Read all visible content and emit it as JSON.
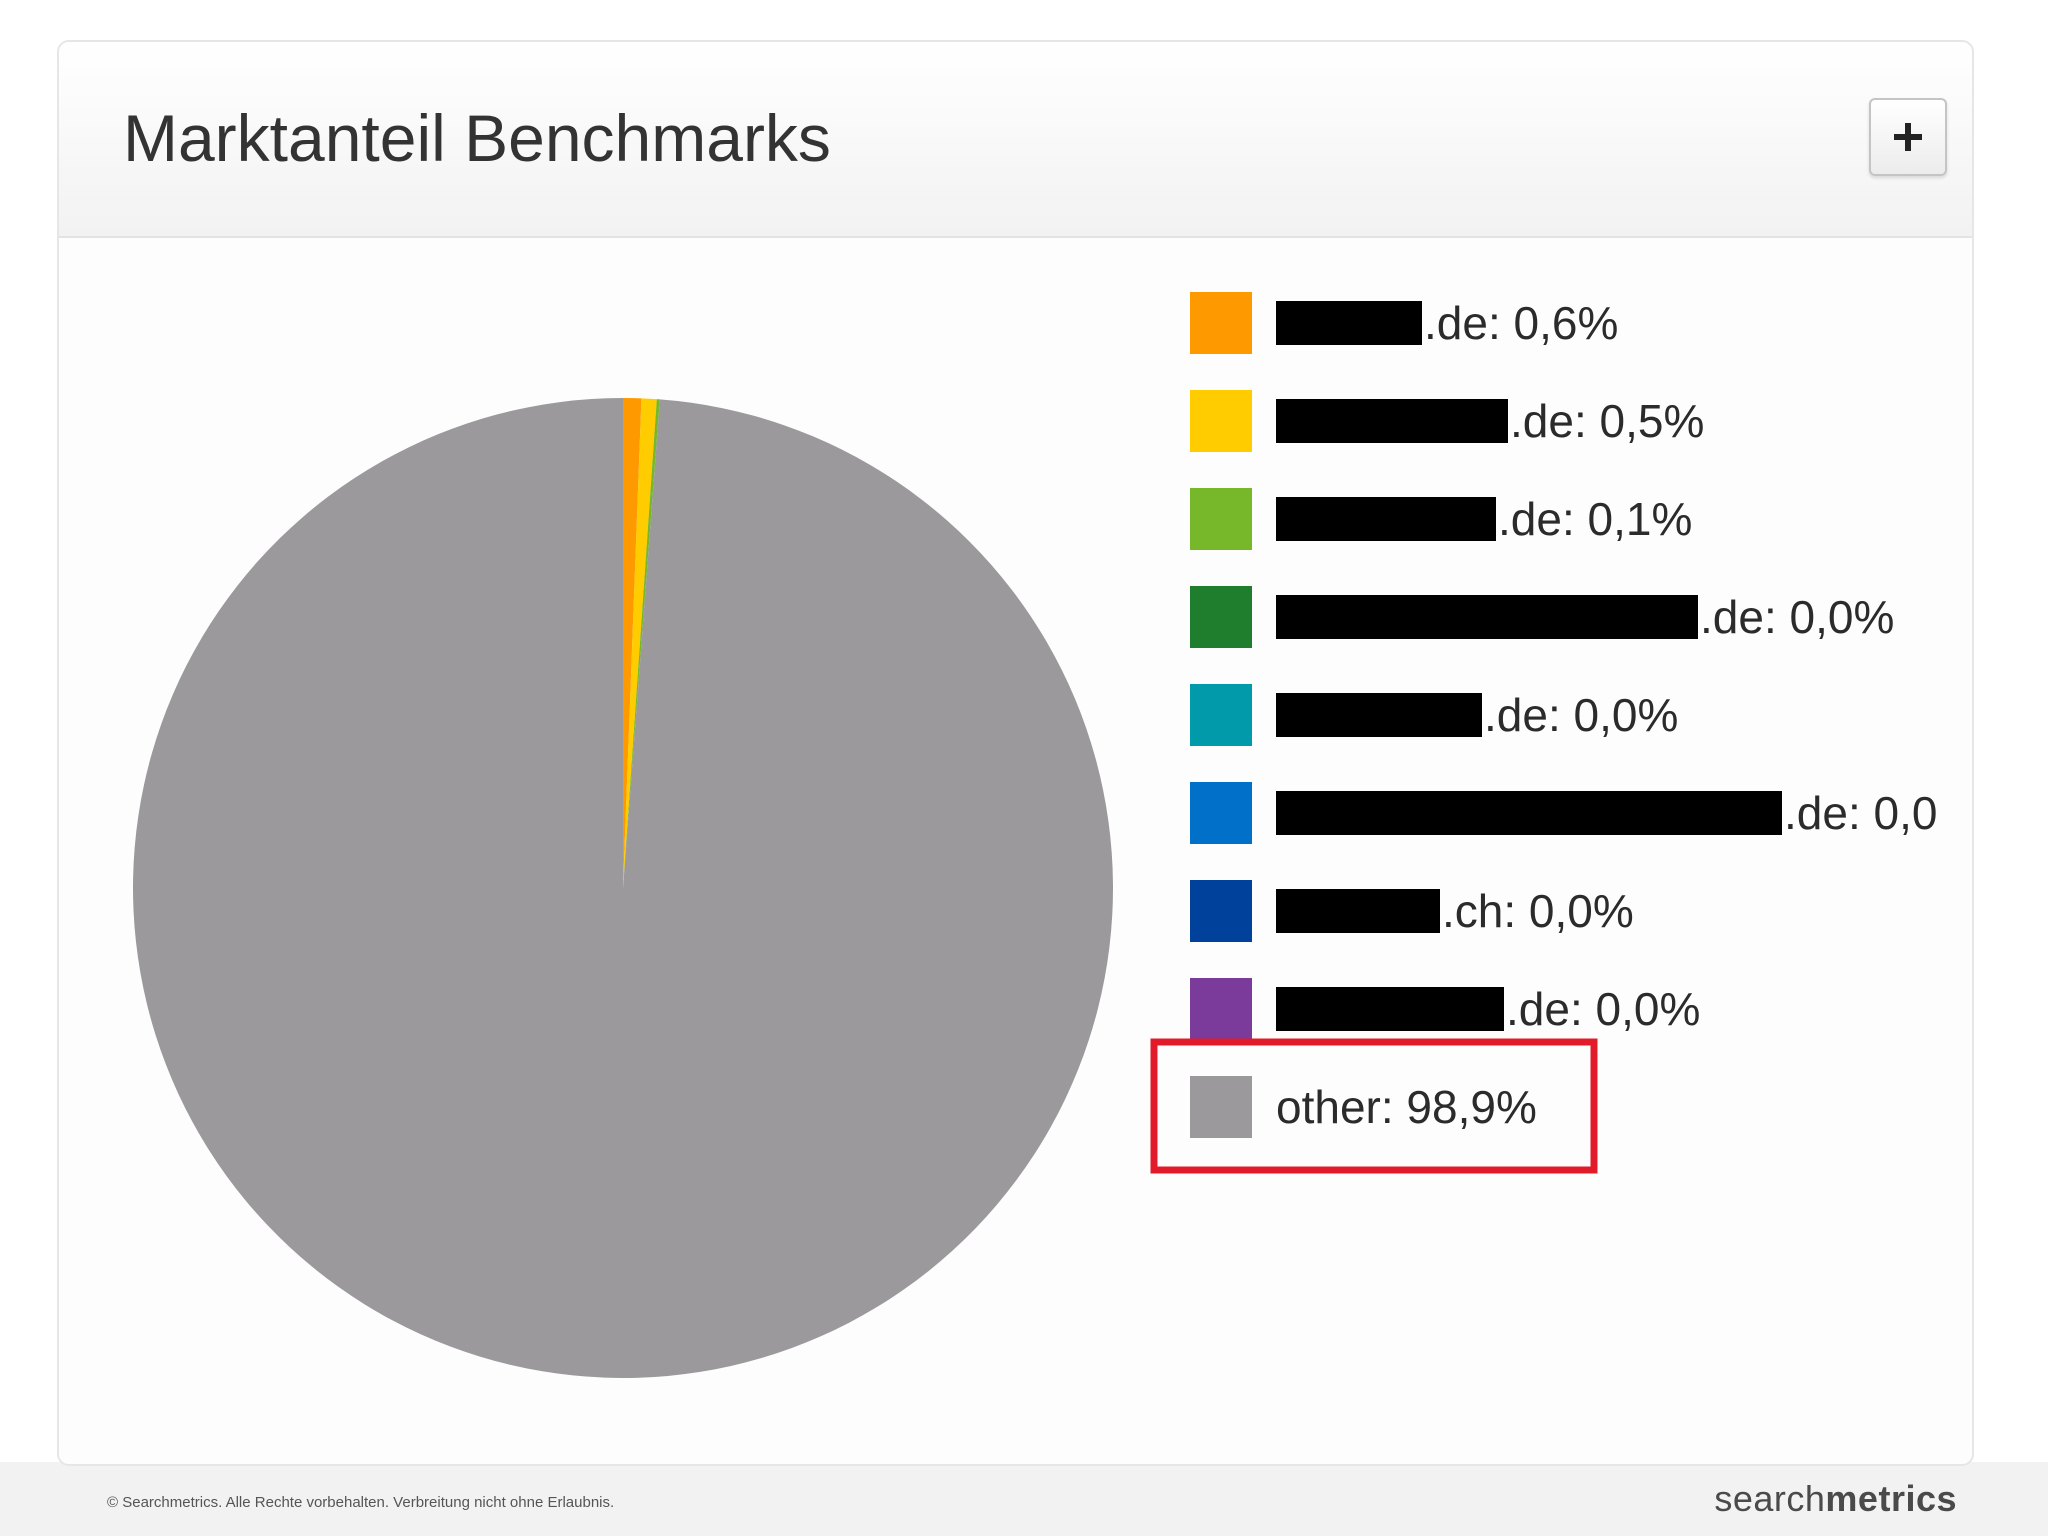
{
  "panel": {
    "title": "Marktanteil Benchmarks",
    "expand_label": "+"
  },
  "footer": {
    "copyright": "© Searchmetrics. Alle Rechte vorbehalten. Verbreitung nicht ohne Erlaubnis.",
    "logo_light": "search",
    "logo_bold": "metrics"
  },
  "chart_data": {
    "type": "pie",
    "title": "Marktanteil Benchmarks",
    "legend_position": "right",
    "highlight": "other",
    "slices": [
      {
        "label": ".de: 0,6%",
        "value": 0.6,
        "color": "#ff9900",
        "redacted": true
      },
      {
        "label": ".de: 0,5%",
        "value": 0.5,
        "color": "#ffcc00",
        "redacted": true
      },
      {
        "label": ".de: 0,1%",
        "value": 0.1,
        "color": "#77b82a",
        "redacted": true
      },
      {
        "label": ".de: 0,0%",
        "value": 0.0,
        "color": "#1e7e2e",
        "redacted": true
      },
      {
        "label": ".de: 0,0%",
        "value": 0.0,
        "color": "#009aab",
        "redacted": true
      },
      {
        "label": ".de: 0,0",
        "value": 0.0,
        "color": "#0070c8",
        "redacted": true
      },
      {
        "label": ".ch: 0,0%",
        "value": 0.0,
        "color": "#00419b",
        "redacted": true
      },
      {
        "label": ".de: 0,0%",
        "value": 0.0,
        "color": "#7b3b9a",
        "redacted": true
      },
      {
        "label": "other: 98,9%",
        "value": 98.9,
        "color": "#9b999c",
        "redacted": false
      }
    ]
  }
}
